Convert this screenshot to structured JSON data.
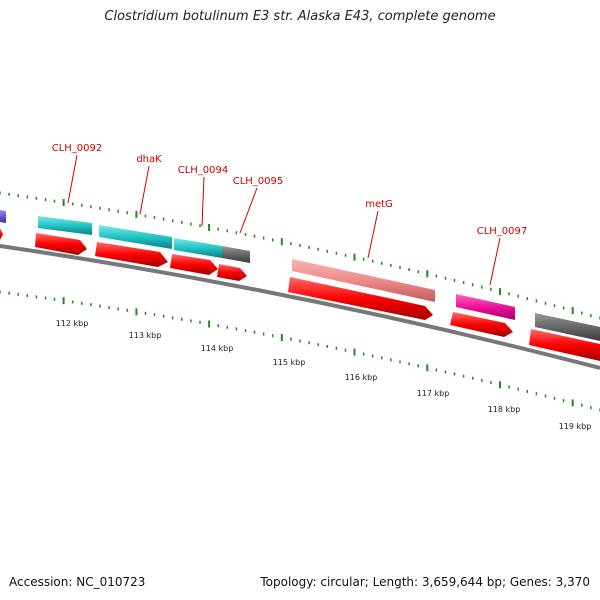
{
  "title": "Clostridium botulinum E3 str. Alaska E43, complete genome",
  "accession": "Accession: NC_010723",
  "topology": "Topology: circular; Length: 3,659,644 bp; Genes: 3,370",
  "gene_labels": [
    "CLH_0092",
    "dhaK",
    "CLH_0094",
    "CLH_0095",
    "metG",
    "CLH_0097"
  ],
  "kbp_labels": [
    "112 kbp",
    "113 kbp",
    "114 kbp",
    "115 kbp",
    "116 kbp",
    "117 kbp",
    "118 kbp",
    "119 kbp"
  ],
  "colors": {
    "gene_label": "#cc0000",
    "cds_arrow": "#ff0000",
    "backbone": "#777777",
    "tick": "#228822",
    "cyan_feature": "#22c4c4",
    "pink_feature": "#f08a8a",
    "magenta_feature": "#ee1199",
    "gray_feature": "#666666",
    "purple_feature": "#6655cc"
  }
}
